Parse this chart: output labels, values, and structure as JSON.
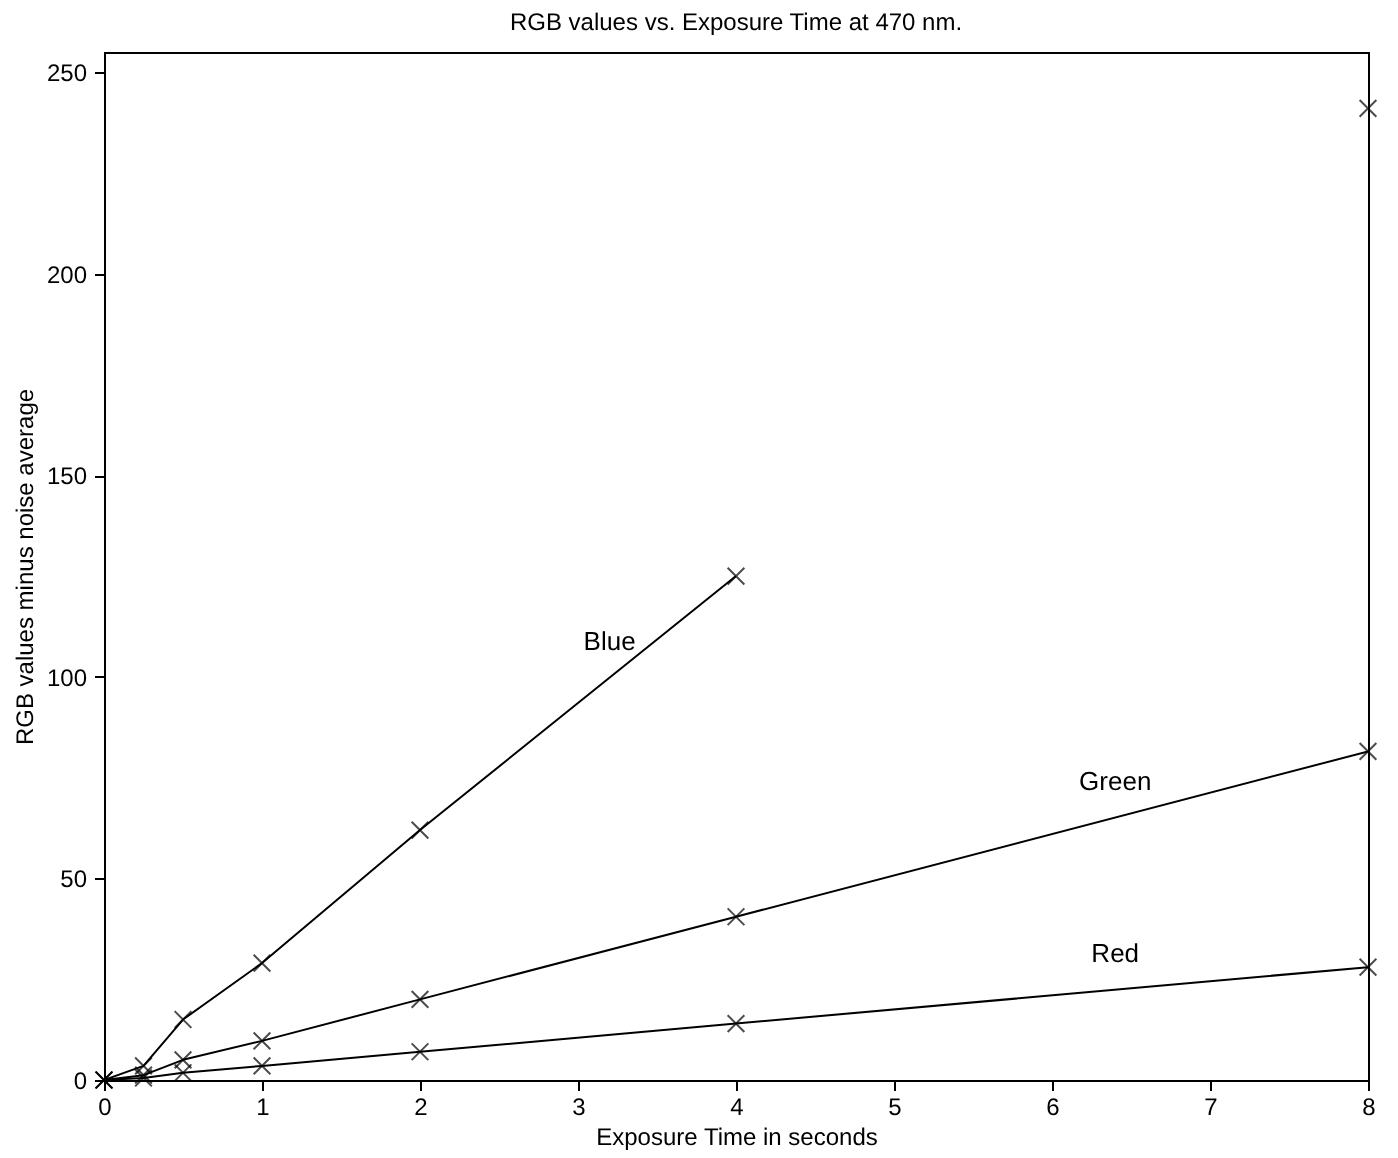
{
  "chart_data": {
    "type": "line",
    "title": "RGB values vs. Exposure Time at 470 nm.",
    "xlabel": "Exposure Time in seconds",
    "ylabel": "RGB values minus noise average",
    "x": [
      0,
      0.25,
      0.5,
      1,
      2,
      4,
      8
    ],
    "series": [
      {
        "name": "Blue",
        "color": "#000000",
        "x": [
          0,
          0.25,
          0.5,
          1,
          2,
          4
        ],
        "values": [
          0,
          3.5,
          15,
          29,
          62,
          125
        ]
      },
      {
        "name": "Green",
        "color": "#000000",
        "values": [
          0,
          1.2,
          5,
          9.7,
          20,
          40.5,
          81.5
        ]
      },
      {
        "name": "Red",
        "color": "#000000",
        "values": [
          0,
          0.5,
          1.8,
          3.5,
          7,
          14,
          28
        ]
      },
      {
        "type": "scatter",
        "color": "#000000",
        "x": [
          8
        ],
        "values": [
          241
        ]
      }
    ],
    "xlim": [
      0,
      8
    ],
    "ylim": [
      0,
      255
    ],
    "xticks": [
      0,
      1,
      2,
      3,
      4,
      5,
      6,
      7,
      8
    ],
    "yticks": [
      0,
      50,
      100,
      150,
      200,
      250
    ],
    "grid": false,
    "marker": "cross",
    "line_style": "solid"
  }
}
